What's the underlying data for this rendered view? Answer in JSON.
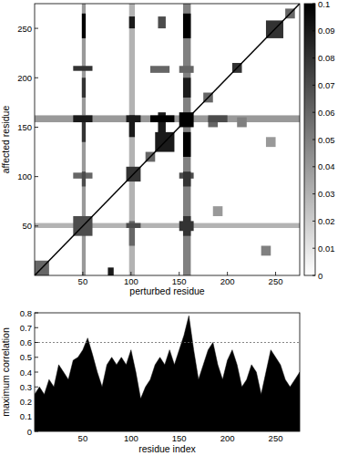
{
  "chart_data": [
    {
      "type": "heatmap",
      "xlabel": "perturbed residue",
      "ylabel": "affected residue",
      "xlim": [
        0,
        275
      ],
      "ylim": [
        0,
        275
      ],
      "xticks": [
        50,
        100,
        150,
        200,
        250
      ],
      "yticks": [
        50,
        100,
        150,
        200,
        250
      ],
      "diagonal": 0.1,
      "cells": [
        [
          49,
          53,
          0,
          275,
          0.04
        ],
        [
          98,
          104,
          0,
          275,
          0.03
        ],
        [
          154,
          162,
          0,
          275,
          0.05
        ],
        [
          0,
          275,
          155,
          162,
          0.04
        ],
        [
          0,
          275,
          48,
          53,
          0.03
        ],
        [
          240,
          250,
          130,
          140,
          0.04
        ],
        [
          185,
          195,
          60,
          70,
          0.04
        ],
        [
          210,
          220,
          150,
          160,
          0.05
        ],
        [
          235,
          245,
          20,
          30,
          0.05
        ],
        [
          0,
          15,
          0,
          15,
          0.06
        ],
        [
          115,
          125,
          115,
          125,
          0.06
        ],
        [
          175,
          185,
          175,
          185,
          0.06
        ],
        [
          260,
          270,
          260,
          270,
          0.06
        ],
        [
          180,
          190,
          150,
          160,
          0.06
        ],
        [
          40,
          60,
          98,
          104,
          0.06
        ],
        [
          120,
          140,
          205,
          212,
          0.06
        ],
        [
          150,
          165,
          205,
          212,
          0.06
        ],
        [
          98,
          104,
          30,
          55,
          0.06
        ],
        [
          40,
          60,
          40,
          60,
          0.07
        ],
        [
          49,
          53,
          90,
          105,
          0.07
        ],
        [
          128,
          136,
          250,
          262,
          0.07
        ],
        [
          180,
          200,
          155,
          162,
          0.07
        ],
        [
          95,
          110,
          48,
          53,
          0.07
        ],
        [
          150,
          165,
          98,
          104,
          0.07
        ],
        [
          95,
          110,
          95,
          110,
          0.08
        ],
        [
          205,
          215,
          205,
          215,
          0.08
        ],
        [
          240,
          258,
          240,
          258,
          0.08
        ],
        [
          49,
          53,
          180,
          200,
          0.08
        ],
        [
          49,
          53,
          135,
          160,
          0.08
        ],
        [
          154,
          162,
          40,
          60,
          0.08
        ],
        [
          154,
          162,
          90,
          105,
          0.08
        ],
        [
          150,
          165,
          45,
          55,
          0.08
        ],
        [
          40,
          60,
          207,
          212,
          0.08
        ],
        [
          98,
          104,
          250,
          262,
          0.09
        ],
        [
          98,
          104,
          140,
          162,
          0.09
        ],
        [
          76,
          82,
          0,
          8,
          0.09
        ],
        [
          154,
          162,
          180,
          200,
          0.09
        ],
        [
          128,
          136,
          140,
          165,
          0.09
        ],
        [
          40,
          60,
          155,
          162,
          0.09
        ],
        [
          95,
          110,
          155,
          162,
          0.09
        ],
        [
          125,
          145,
          125,
          145,
          0.09
        ],
        [
          150,
          165,
          150,
          165,
          0.1
        ],
        [
          49,
          53,
          240,
          265,
          0.1
        ],
        [
          154,
          162,
          240,
          265,
          0.1
        ],
        [
          154,
          162,
          120,
          145,
          0.1
        ],
        [
          120,
          145,
          155,
          162,
          0.1
        ]
      ],
      "colorbar": {
        "range": [
          0,
          0.1
        ],
        "ticks": [
          0,
          0.01,
          0.02,
          0.03,
          0.04,
          0.05,
          0.06,
          0.07,
          0.08,
          0.09,
          0.1
        ]
      }
    },
    {
      "type": "area",
      "xlabel": "residue index",
      "ylabel": "maximum correlation",
      "color": "#000000",
      "xlim": [
        0,
        275
      ],
      "ylim": [
        0,
        0.8
      ],
      "xticks": [
        50,
        100,
        150,
        200,
        250
      ],
      "yticks": [
        0,
        0.1,
        0.2,
        0.3,
        0.4,
        0.5,
        0.6,
        0.7,
        0.8
      ],
      "threshold": 0.6,
      "x": [
        0,
        5,
        10,
        15,
        20,
        25,
        30,
        35,
        40,
        45,
        50,
        55,
        60,
        65,
        70,
        75,
        80,
        85,
        90,
        95,
        100,
        105,
        110,
        115,
        120,
        125,
        130,
        135,
        140,
        145,
        150,
        155,
        160,
        165,
        170,
        175,
        180,
        185,
        190,
        195,
        200,
        205,
        210,
        215,
        220,
        225,
        230,
        235,
        240,
        245,
        250,
        255,
        260,
        265,
        270,
        275
      ],
      "values": [
        0.25,
        0.3,
        0.25,
        0.35,
        0.3,
        0.45,
        0.4,
        0.35,
        0.48,
        0.5,
        0.55,
        0.63,
        0.52,
        0.4,
        0.3,
        0.45,
        0.5,
        0.45,
        0.5,
        0.45,
        0.55,
        0.4,
        0.22,
        0.3,
        0.35,
        0.45,
        0.5,
        0.45,
        0.55,
        0.45,
        0.55,
        0.65,
        0.78,
        0.55,
        0.35,
        0.45,
        0.55,
        0.6,
        0.45,
        0.35,
        0.48,
        0.55,
        0.45,
        0.3,
        0.35,
        0.45,
        0.4,
        0.25,
        0.4,
        0.55,
        0.5,
        0.45,
        0.35,
        0.3,
        0.35,
        0.4
      ]
    }
  ]
}
